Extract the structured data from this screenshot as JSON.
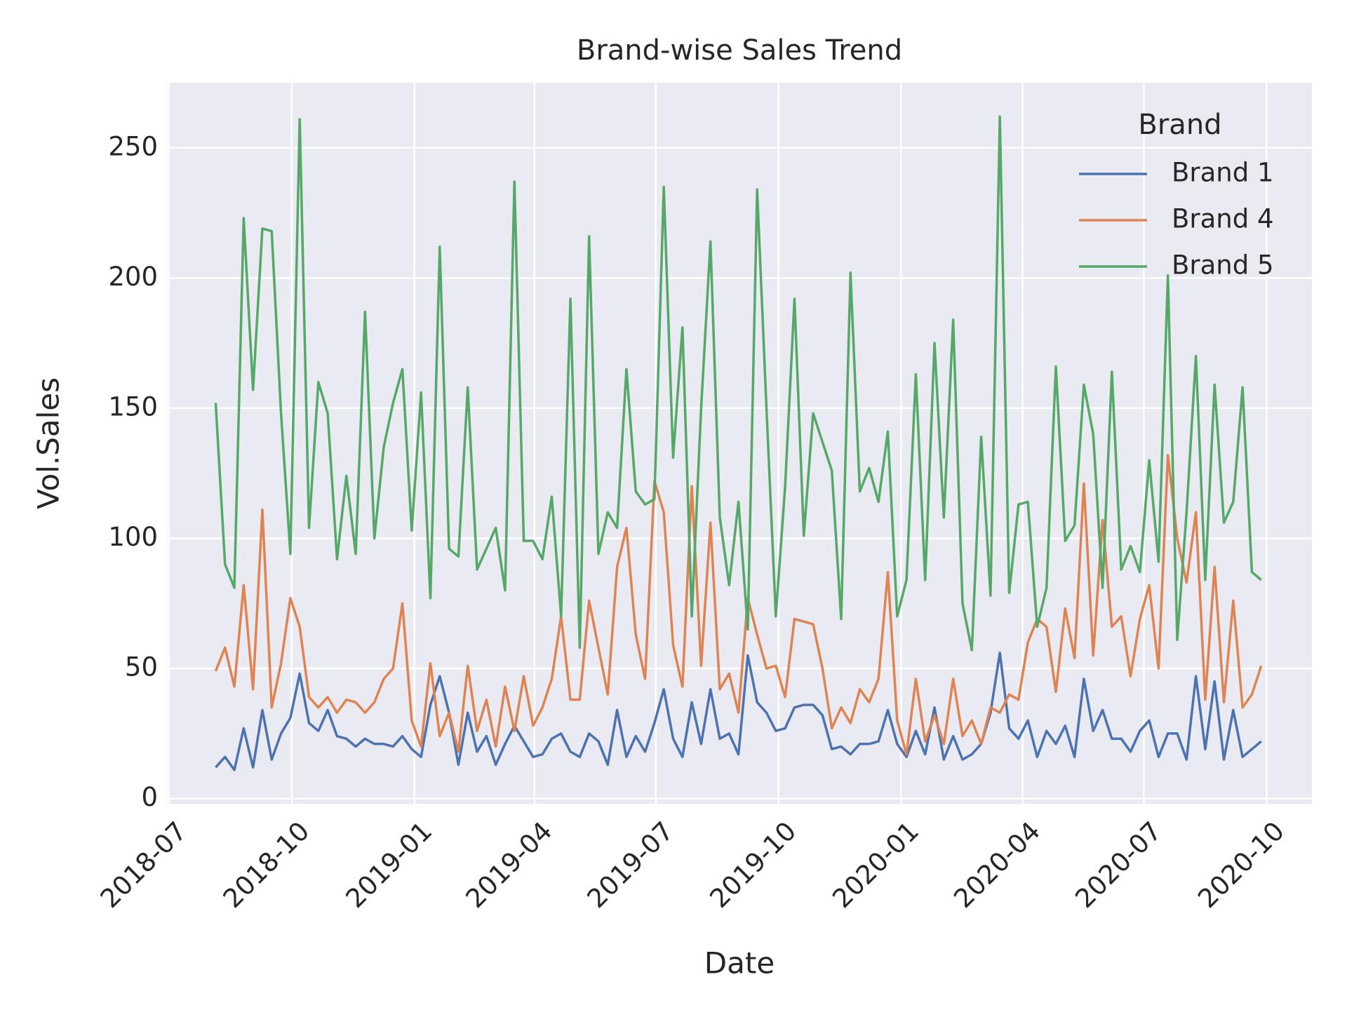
{
  "chart_data": {
    "type": "line",
    "title": "Brand-wise Sales Trend",
    "xlabel": "Date",
    "ylabel": "Vol.Sales",
    "legend_title": "Brand",
    "legend": "upper right",
    "grid": true,
    "x": [
      "2018-08-05",
      "2018-08-12",
      "2018-08-19",
      "2018-08-26",
      "2018-09-02",
      "2018-09-09",
      "2018-09-16",
      "2018-09-23",
      "2018-09-30",
      "2018-10-07",
      "2018-10-14",
      "2018-10-21",
      "2018-10-28",
      "2018-11-04",
      "2018-11-11",
      "2018-11-18",
      "2018-11-25",
      "2018-12-02",
      "2018-12-09",
      "2018-12-16",
      "2018-12-23",
      "2018-12-30",
      "2019-01-06",
      "2019-01-13",
      "2019-01-20",
      "2019-01-27",
      "2019-02-03",
      "2019-02-10",
      "2019-02-17",
      "2019-02-24",
      "2019-03-03",
      "2019-03-10",
      "2019-03-17",
      "2019-03-24",
      "2019-03-31",
      "2019-04-07",
      "2019-04-14",
      "2019-04-21",
      "2019-04-28",
      "2019-05-05",
      "2019-05-12",
      "2019-05-19",
      "2019-05-26",
      "2019-06-02",
      "2019-06-09",
      "2019-06-16",
      "2019-06-23",
      "2019-06-30",
      "2019-07-07",
      "2019-07-14",
      "2019-07-21",
      "2019-07-28",
      "2019-08-04",
      "2019-08-11",
      "2019-08-18",
      "2019-08-25",
      "2019-09-01",
      "2019-09-08",
      "2019-09-15",
      "2019-09-22",
      "2019-09-29",
      "2019-10-06",
      "2019-10-13",
      "2019-10-20",
      "2019-10-27",
      "2019-11-03",
      "2019-11-10",
      "2019-11-17",
      "2019-11-24",
      "2019-12-01",
      "2019-12-08",
      "2019-12-15",
      "2019-12-22",
      "2019-12-29",
      "2020-01-05",
      "2020-01-12",
      "2020-01-19",
      "2020-01-26",
      "2020-02-02",
      "2020-02-09",
      "2020-02-16",
      "2020-02-23",
      "2020-03-01",
      "2020-03-08",
      "2020-03-15",
      "2020-03-22",
      "2020-03-29",
      "2020-04-05",
      "2020-04-12",
      "2020-04-19",
      "2020-04-26",
      "2020-05-03",
      "2020-05-10",
      "2020-05-17",
      "2020-05-24",
      "2020-05-31",
      "2020-06-07",
      "2020-06-14",
      "2020-06-21",
      "2020-06-28",
      "2020-07-05",
      "2020-07-12",
      "2020-07-19",
      "2020-07-26",
      "2020-08-02",
      "2020-08-09",
      "2020-08-16",
      "2020-08-23",
      "2020-08-30",
      "2020-09-06",
      "2020-09-13",
      "2020-09-20",
      "2020-09-27"
    ],
    "series": [
      {
        "name": "Brand 1",
        "color": "#4c72b0",
        "values": [
          12,
          16,
          11,
          27,
          12,
          34,
          15,
          25,
          31,
          48,
          29,
          26,
          34,
          24,
          23,
          20,
          23,
          21,
          21,
          20,
          24,
          19,
          16,
          36,
          47,
          33,
          13,
          33,
          18,
          24,
          13,
          21,
          28,
          22,
          16,
          17,
          23,
          25,
          18,
          16,
          25,
          22,
          13,
          34,
          16,
          24,
          18,
          29,
          42,
          23,
          16,
          37,
          21,
          42,
          23,
          25,
          17,
          55,
          37,
          33,
          26,
          27,
          35,
          36,
          36,
          32,
          19,
          20,
          17,
          21,
          21,
          22,
          34,
          21,
          16,
          26,
          17,
          35,
          15,
          24,
          15,
          17,
          21,
          33,
          56,
          27,
          23,
          30,
          16,
          26,
          21,
          28,
          16,
          46,
          26,
          34,
          23,
          23,
          18,
          26,
          30,
          16,
          25,
          25,
          15,
          47,
          19,
          45,
          15,
          34,
          16,
          19,
          22
        ]
      },
      {
        "name": "Brand 4",
        "color": "#dd8452",
        "values": [
          49,
          58,
          43,
          82,
          42,
          111,
          35,
          52,
          77,
          66,
          39,
          35,
          39,
          33,
          38,
          37,
          33,
          37,
          46,
          50,
          75,
          30,
          20,
          52,
          24,
          33,
          18,
          51,
          26,
          38,
          20,
          43,
          26,
          47,
          28,
          35,
          46,
          70,
          38,
          38,
          76,
          58,
          40,
          89,
          104,
          63,
          46,
          122,
          110,
          59,
          43,
          120,
          51,
          106,
          42,
          48,
          33,
          77,
          63,
          50,
          51,
          39,
          69,
          68,
          67,
          50,
          27,
          35,
          29,
          42,
          37,
          46,
          87,
          30,
          17,
          46,
          22,
          32,
          21,
          46,
          24,
          30,
          21,
          35,
          33,
          40,
          38,
          60,
          69,
          66,
          41,
          73,
          54,
          121,
          55,
          107,
          66,
          70,
          47,
          69,
          82,
          50,
          132,
          100,
          83,
          110,
          38,
          89,
          37,
          76,
          35,
          40,
          51
        ]
      },
      {
        "name": "Brand 5",
        "color": "#55a868",
        "values": [
          152,
          90,
          81,
          223,
          157,
          219,
          218,
          148,
          94,
          261,
          104,
          160,
          148,
          92,
          124,
          94,
          187,
          100,
          135,
          152,
          165,
          103,
          156,
          77,
          212,
          96,
          93,
          158,
          88,
          96,
          104,
          80,
          237,
          99,
          99,
          92,
          116,
          70,
          192,
          58,
          216,
          94,
          110,
          104,
          165,
          118,
          113,
          115,
          235,
          131,
          181,
          70,
          150,
          214,
          108,
          82,
          114,
          65,
          234,
          150,
          70,
          120,
          192,
          101,
          148,
          137,
          126,
          69,
          202,
          118,
          127,
          114,
          141,
          70,
          84,
          163,
          84,
          175,
          108,
          184,
          75,
          57,
          139,
          78,
          262,
          79,
          113,
          114,
          66,
          81,
          166,
          99,
          105,
          159,
          140,
          81,
          164,
          88,
          97,
          87,
          130,
          91,
          201,
          61,
          110,
          170,
          84,
          159,
          106,
          114,
          158,
          87,
          84
        ]
      }
    ],
    "xlim": [
      "2018-06-30",
      "2020-11-04"
    ],
    "xticks": [
      {
        "value": "2018-07-01",
        "label": "2018-07"
      },
      {
        "value": "2018-10-01",
        "label": "2018-10"
      },
      {
        "value": "2019-01-01",
        "label": "2019-01"
      },
      {
        "value": "2019-04-01",
        "label": "2019-04"
      },
      {
        "value": "2019-07-01",
        "label": "2019-07"
      },
      {
        "value": "2019-10-01",
        "label": "2019-10"
      },
      {
        "value": "2020-01-01",
        "label": "2020-01"
      },
      {
        "value": "2020-04-01",
        "label": "2020-04"
      },
      {
        "value": "2020-07-01",
        "label": "2020-07"
      },
      {
        "value": "2020-10-01",
        "label": "2020-10"
      }
    ],
    "ylim": [
      -2,
      275
    ],
    "yticks": [
      0,
      50,
      100,
      150,
      200,
      250
    ]
  }
}
